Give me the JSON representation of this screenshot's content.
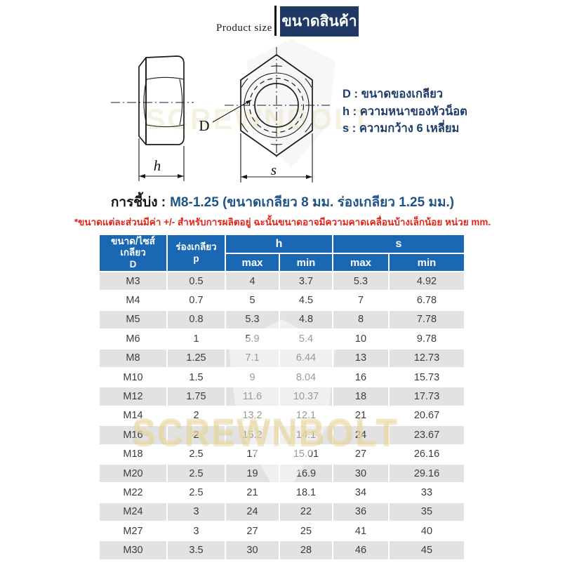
{
  "header": {
    "product_size_label": "Product size",
    "title_box_text": "ขนาดสินค้า"
  },
  "diagram": {
    "dim_d": "D",
    "dim_h": "h",
    "dim_s": "s",
    "legend": [
      "D : ขนาดของเกลียว",
      "h : ความหนาของหัวน็อต",
      "s : ความกว้าง 6 เหลี่ยม"
    ]
  },
  "usage": {
    "prefix": "การชี้บ่ง :",
    "value": "M8-1.25 (ขนาดเกลียว 8 มม. ร่องเกลียว 1.25 มม.)",
    "disclaimer": "*ขนาดแต่ละส่วนมีค่า +/- สำหรับการผลิตอยู่ ฉะนั้นขนาดอาจมีความคาดเคลื่อนบ้างเล็กน้อย หน่วย mm."
  },
  "watermark": {
    "brand": "SCREWNBOLT"
  },
  "table": {
    "headers": {
      "size_lines": [
        "ขนาด/ไซส์",
        "เกลียว",
        "D"
      ],
      "pitch_lines": [
        "ร่องเกลียว",
        "p"
      ],
      "group_h": "h",
      "group_s": "s",
      "max_label": "max",
      "min_label": "min"
    },
    "rows": [
      [
        "M3",
        "0.5",
        "4",
        "3.7",
        "5.3",
        "4.92"
      ],
      [
        "M4",
        "0.7",
        "5",
        "4.5",
        "7",
        "6.78"
      ],
      [
        "M5",
        "0.8",
        "5.3",
        "4.8",
        "8",
        "7.78"
      ],
      [
        "M6",
        "1",
        "5.9",
        "5.4",
        "10",
        "9.78"
      ],
      [
        "M8",
        "1.25",
        "7.1",
        "6.44",
        "13",
        "12.73"
      ],
      [
        "M10",
        "1.5",
        "9",
        "8.04",
        "16",
        "15.73"
      ],
      [
        "M12",
        "1.75",
        "11.6",
        "10.37",
        "18",
        "17.73"
      ],
      [
        "M14",
        "2",
        "13.2",
        "12.1",
        "21",
        "20.67"
      ],
      [
        "M16",
        "2",
        "15.2",
        "14.1",
        "24",
        "23.67"
      ],
      [
        "M18",
        "2.5",
        "17",
        "15.01",
        "27",
        "26.16"
      ],
      [
        "M20",
        "2.5",
        "19",
        "16.9",
        "30",
        "29.16"
      ],
      [
        "M22",
        "2.5",
        "21",
        "18.1",
        "34",
        "33"
      ],
      [
        "M24",
        "3",
        "24",
        "22",
        "36",
        "35"
      ],
      [
        "M27",
        "3",
        "27",
        "25",
        "41",
        "40"
      ],
      [
        "M30",
        "3.5",
        "30",
        "28",
        "46",
        "45"
      ]
    ]
  },
  "colors": {
    "title_box_navy": "#1f3864",
    "table_header_blue": "#1a67b3",
    "row_alt_gray": "#e2e2e2",
    "legend_navy": "#1e3e6b",
    "usage_blue": "#1f5586",
    "note_red": "#e1251b",
    "watermark_cream": "#e9dcac"
  }
}
